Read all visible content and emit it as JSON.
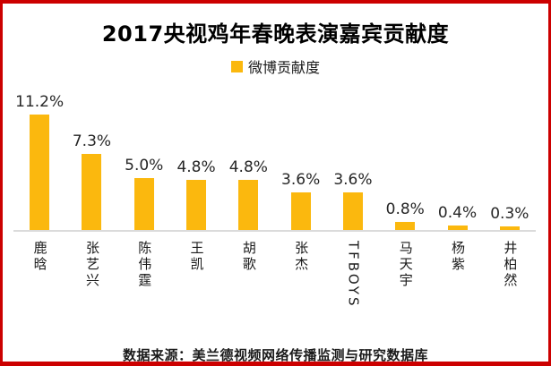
{
  "title": "2017央视鸡年春晚表演嘉宾贡献度",
  "legend": {
    "label": "微博贡献度",
    "swatch_color": "#FBB80E"
  },
  "footer": {
    "source": "数据来源：美兰德视频网络传播监测与研究数据库"
  },
  "colors": {
    "bar": "#FBB80E",
    "frame_border": "#CC0000",
    "baseline": "#DBDBDB",
    "label_text": "#262626"
  },
  "chart_data": {
    "type": "bar",
    "title": "2017央视鸡年春晚表演嘉宾贡献度",
    "series_name": "微博贡献度",
    "categories": [
      "鹿晗",
      "张艺兴",
      "陈伟霆",
      "王凯",
      "胡歌",
      "张杰",
      "TFBOYS",
      "马天宇",
      "杨紫",
      "井柏然"
    ],
    "values": [
      11.2,
      7.3,
      5.0,
      4.8,
      4.8,
      3.6,
      3.6,
      0.8,
      0.4,
      0.3
    ],
    "value_labels": [
      "11.2%",
      "7.3%",
      "5.0%",
      "4.8%",
      "4.8%",
      "3.6%",
      "3.6%",
      "0.8%",
      "0.4%",
      "0.3%"
    ],
    "xlabel": "",
    "ylabel": "",
    "ylim": [
      0,
      11.2
    ],
    "grid": false,
    "legend_position": "top",
    "bar_color": "#FBB80E",
    "source_note": "数据来源：美兰德视频网络传播监测与研究数据库"
  }
}
